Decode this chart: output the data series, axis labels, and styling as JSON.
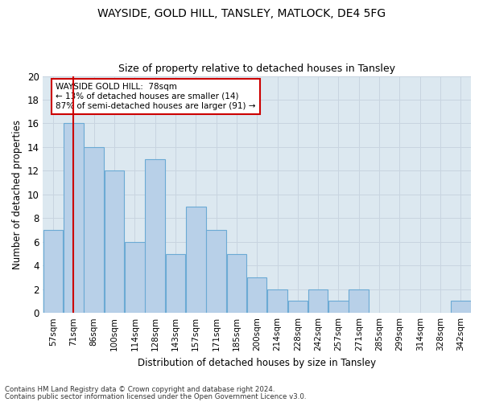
{
  "title1": "WAYSIDE, GOLD HILL, TANSLEY, MATLOCK, DE4 5FG",
  "title2": "Size of property relative to detached houses in Tansley",
  "xlabel": "Distribution of detached houses by size in Tansley",
  "ylabel": "Number of detached properties",
  "categories": [
    "57sqm",
    "71sqm",
    "86sqm",
    "100sqm",
    "114sqm",
    "128sqm",
    "143sqm",
    "157sqm",
    "171sqm",
    "185sqm",
    "200sqm",
    "214sqm",
    "228sqm",
    "242sqm",
    "257sqm",
    "271sqm",
    "285sqm",
    "299sqm",
    "314sqm",
    "328sqm",
    "342sqm"
  ],
  "values": [
    7,
    16,
    14,
    12,
    6,
    13,
    5,
    9,
    7,
    5,
    3,
    2,
    1,
    2,
    1,
    2,
    0,
    0,
    0,
    0,
    1
  ],
  "bar_color": "#b8d0e8",
  "bar_edge_color": "#6baad4",
  "vline_x": 1,
  "vline_color": "#cc0000",
  "annotation_text": "WAYSIDE GOLD HILL:  78sqm\n← 13% of detached houses are smaller (14)\n87% of semi-detached houses are larger (91) →",
  "annotation_box_color": "#ffffff",
  "annotation_box_edge": "#cc0000",
  "ylim": [
    0,
    20
  ],
  "yticks": [
    0,
    2,
    4,
    6,
    8,
    10,
    12,
    14,
    16,
    18,
    20
  ],
  "footer1": "Contains HM Land Registry data © Crown copyright and database right 2024.",
  "footer2": "Contains public sector information licensed under the Open Government Licence v3.0.",
  "grid_color": "#c8d4e0",
  "background_color": "#dce8f0"
}
